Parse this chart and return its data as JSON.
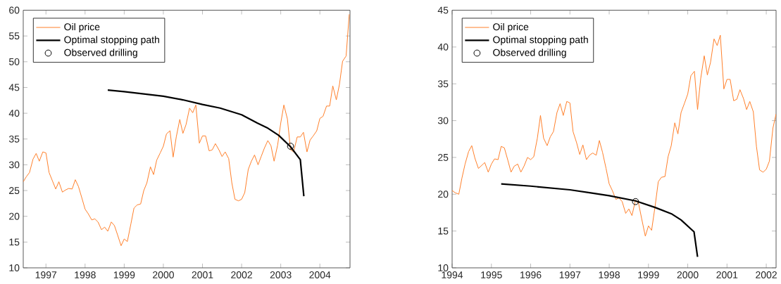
{
  "chart_data": [
    {
      "type": "line",
      "legend": "top left",
      "grid": false,
      "xlim": [
        1996.42,
        2004.77
      ],
      "ylim": [
        10,
        60
      ],
      "xticks": [
        1997,
        1998,
        1999,
        2000,
        2001,
        2002,
        2003,
        2004
      ],
      "yticks": [
        10,
        15,
        20,
        25,
        30,
        35,
        40,
        45,
        50,
        55,
        60
      ],
      "series": [
        {
          "name": "Oil price",
          "color": "#ff7f2a",
          "x": [
            1996.42,
            1996.5,
            1996.58,
            1996.67,
            1996.75,
            1996.83,
            1996.92,
            1997.0,
            1997.08,
            1997.17,
            1997.25,
            1997.33,
            1997.42,
            1997.5,
            1997.58,
            1997.67,
            1997.75,
            1997.83,
            1997.92,
            1998.0,
            1998.08,
            1998.17,
            1998.25,
            1998.33,
            1998.42,
            1998.5,
            1998.58,
            1998.67,
            1998.75,
            1998.83,
            1998.92,
            1999.0,
            1999.08,
            1999.17,
            1999.25,
            1999.33,
            1999.42,
            1999.5,
            1999.58,
            1999.67,
            1999.75,
            1999.83,
            1999.92,
            2000.0,
            2000.08,
            2000.17,
            2000.25,
            2000.33,
            2000.42,
            2000.5,
            2000.58,
            2000.67,
            2000.75,
            2000.83,
            2000.92,
            2001.0,
            2001.08,
            2001.17,
            2001.25,
            2001.33,
            2001.42,
            2001.5,
            2001.58,
            2001.67,
            2001.75,
            2001.83,
            2001.92,
            2002.0,
            2002.08,
            2002.17,
            2002.25,
            2002.33,
            2002.42,
            2002.5,
            2002.58,
            2002.67,
            2002.75,
            2002.83,
            2002.92,
            2003.0,
            2003.08,
            2003.17,
            2003.25,
            2003.33,
            2003.42,
            2003.5,
            2003.58,
            2003.67,
            2003.75,
            2003.83,
            2003.92,
            2004.0,
            2004.08,
            2004.17,
            2004.25,
            2004.33,
            2004.42,
            2004.5,
            2004.58,
            2004.67,
            2004.75
          ],
          "values": [
            26.7,
            27.7,
            28.5,
            31.1,
            32.2,
            30.7,
            32.5,
            32.3,
            28.5,
            26.8,
            25.3,
            26.7,
            24.7,
            25.1,
            25.4,
            25.3,
            27.1,
            25.8,
            23.5,
            21.4,
            20.5,
            19.3,
            19.5,
            18.9,
            17.4,
            17.9,
            17.1,
            18.9,
            18.2,
            16.4,
            14.3,
            15.6,
            15.1,
            18.5,
            21.6,
            22.2,
            22.4,
            25.0,
            26.5,
            29.6,
            28.1,
            30.9,
            32.3,
            33.6,
            36.0,
            36.6,
            31.5,
            35.4,
            38.8,
            36.1,
            37.8,
            41.0,
            40.1,
            41.6,
            34.2,
            35.6,
            35.6,
            32.7,
            32.9,
            34.1,
            32.9,
            31.6,
            32.5,
            31.2,
            26.5,
            23.3,
            23.0,
            23.3,
            24.6,
            29.1,
            30.7,
            31.9,
            30.0,
            31.6,
            33.2,
            34.7,
            33.7,
            30.7,
            33.8,
            38.1,
            41.6,
            38.9,
            32.9,
            32.5,
            35.4,
            35.4,
            36.3,
            32.5,
            34.8,
            35.6,
            36.6,
            39.0,
            39.4,
            41.4,
            41.4,
            45.3,
            42.6,
            45.6,
            50.1,
            51.1,
            59.2
          ]
        },
        {
          "name": "Optimal stopping path",
          "color": "#000000",
          "x": [
            1998.58,
            1999.0,
            2000.0,
            2000.5,
            2001.0,
            2001.45,
            2002.0,
            2002.4,
            2002.65,
            2002.95,
            2003.25,
            2003.5,
            2003.59
          ],
          "values": [
            44.5,
            44.2,
            43.3,
            42.6,
            41.7,
            41.0,
            39.7,
            38.1,
            37.2,
            35.7,
            33.5,
            31.0,
            23.9
          ]
        },
        {
          "name": "Observed drilling",
          "type": "scatter",
          "marker": "circle",
          "color": "#000000",
          "x": [
            2003.25
          ],
          "values": [
            33.6
          ]
        }
      ]
    },
    {
      "type": "line",
      "legend": "top left",
      "grid": false,
      "xlim": [
        1994,
        2002.25
      ],
      "ylim": [
        10,
        45
      ],
      "xticks": [
        1994,
        1995,
        1996,
        1997,
        1998,
        1999,
        2000,
        2001,
        2002
      ],
      "yticks": [
        10,
        15,
        20,
        25,
        30,
        35,
        40,
        45
      ],
      "series": [
        {
          "name": "Oil price",
          "color": "#ff7f2a",
          "x": [
            1994.0,
            1994.08,
            1994.17,
            1994.25,
            1994.33,
            1994.42,
            1994.5,
            1994.58,
            1994.67,
            1994.75,
            1994.83,
            1994.92,
            1995.0,
            1995.08,
            1995.17,
            1995.25,
            1995.33,
            1995.42,
            1995.5,
            1995.58,
            1995.67,
            1995.75,
            1995.83,
            1995.92,
            1996.0,
            1996.08,
            1996.17,
            1996.25,
            1996.33,
            1996.42,
            1996.5,
            1996.58,
            1996.67,
            1996.75,
            1996.83,
            1996.92,
            1997.0,
            1997.08,
            1997.17,
            1997.25,
            1997.33,
            1997.42,
            1997.5,
            1997.58,
            1997.67,
            1997.75,
            1997.83,
            1997.92,
            1998.0,
            1998.08,
            1998.17,
            1998.25,
            1998.33,
            1998.42,
            1998.5,
            1998.58,
            1998.67,
            1998.75,
            1998.83,
            1998.92,
            1999.0,
            1999.08,
            1999.17,
            1999.25,
            1999.33,
            1999.42,
            1999.5,
            1999.58,
            1999.67,
            1999.75,
            1999.83,
            1999.92,
            2000.0,
            2000.08,
            2000.17,
            2000.25,
            2000.33,
            2000.42,
            2000.5,
            2000.58,
            2000.67,
            2000.75,
            2000.83,
            2000.92,
            2001.0,
            2001.08,
            2001.17,
            2001.25,
            2001.33,
            2001.42,
            2001.5,
            2001.58,
            2001.67,
            2001.75,
            2001.83,
            2001.92,
            2002.0,
            2002.08,
            2002.17,
            2002.25
          ],
          "values": [
            20.5,
            20.2,
            20.0,
            22.2,
            24.1,
            25.8,
            26.6,
            24.9,
            23.5,
            23.9,
            24.3,
            23.0,
            24.1,
            24.8,
            24.7,
            26.5,
            26.3,
            24.6,
            23.0,
            23.8,
            24.1,
            23.0,
            23.8,
            25.0,
            24.7,
            25.1,
            27.6,
            30.7,
            27.6,
            26.6,
            27.8,
            28.5,
            31.1,
            32.3,
            30.7,
            32.6,
            32.4,
            28.5,
            27.0,
            25.4,
            26.7,
            24.7,
            25.3,
            25.6,
            25.3,
            27.3,
            25.7,
            23.5,
            21.4,
            20.5,
            19.3,
            19.5,
            19.0,
            17.4,
            18.0,
            17.1,
            19.2,
            18.7,
            16.6,
            14.3,
            15.7,
            15.1,
            18.4,
            21.7,
            22.3,
            22.4,
            25.1,
            26.6,
            29.7,
            28.2,
            31.1,
            32.4,
            33.6,
            36.1,
            36.7,
            31.5,
            35.7,
            38.8,
            36.2,
            37.9,
            41.1,
            40.2,
            41.6,
            34.3,
            35.6,
            35.6,
            32.7,
            32.9,
            34.2,
            33.0,
            31.5,
            32.6,
            31.2,
            26.5,
            23.3,
            23.0,
            23.4,
            24.5,
            29.0,
            30.9
          ]
        },
        {
          "name": "Optimal stopping path",
          "color": "#000000",
          "x": [
            1995.25,
            1996.0,
            1997.0,
            1997.5,
            1998.0,
            1998.67,
            1999.17,
            1999.6,
            1999.83,
            2000.16,
            2000.25
          ],
          "values": [
            21.4,
            21.1,
            20.6,
            20.2,
            19.8,
            19.1,
            18.2,
            17.3,
            16.5,
            14.9,
            11.5
          ]
        },
        {
          "name": "Observed drilling",
          "type": "scatter",
          "marker": "circle",
          "color": "#000000",
          "x": [
            1998.67
          ],
          "values": [
            19.0
          ]
        }
      ]
    }
  ]
}
